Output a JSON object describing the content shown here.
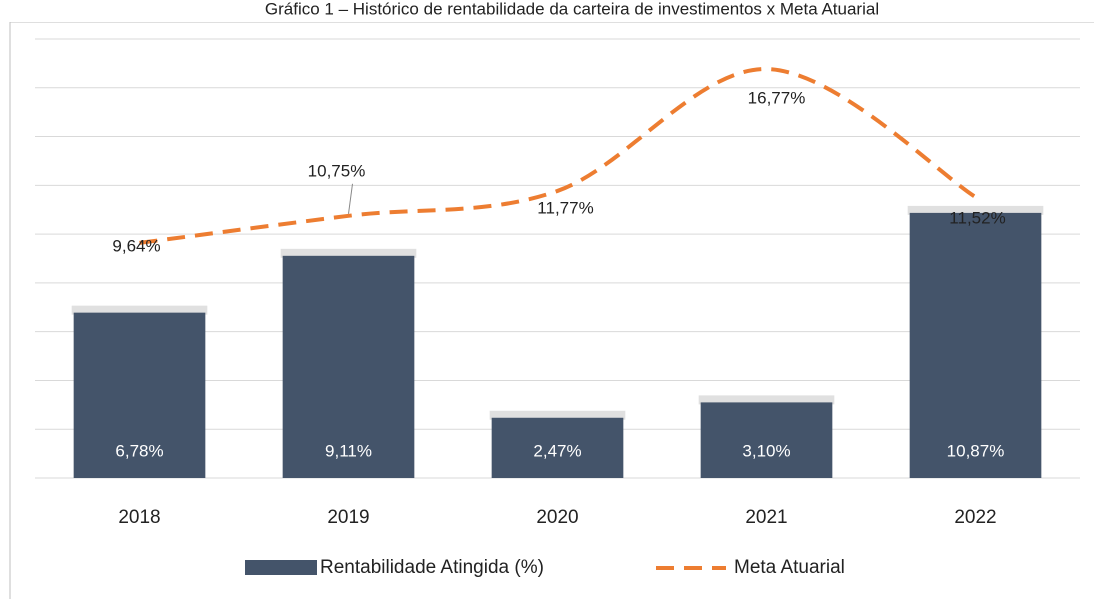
{
  "chart_data": {
    "type": "bar_line",
    "title": "Gráfico 1 – Histórico de rentabilidade da carteira de investimentos x Meta Atuarial",
    "categories": [
      "2018",
      "2019",
      "2020",
      "2021",
      "2022"
    ],
    "series": [
      {
        "name": "Rentabilidade Atingida (%)",
        "type": "bar",
        "color": "#44546a",
        "values": [
          6.78,
          9.11,
          2.47,
          3.1,
          10.87
        ],
        "value_labels": [
          "6,78%",
          "9,11%",
          "2,47%",
          "3,10%",
          "10,87%"
        ]
      },
      {
        "name": "Meta Atuarial",
        "type": "line",
        "color": "#ed7d31",
        "dashed": true,
        "smooth": true,
        "values": [
          9.64,
          10.75,
          11.77,
          16.77,
          11.52
        ],
        "value_labels": [
          "9,64%",
          "10,75%",
          "11,77%",
          "16,77%",
          "11,52%"
        ]
      }
    ],
    "ylim": [
      0,
      18
    ],
    "yticks": [
      0,
      2,
      4,
      6,
      8,
      10,
      12,
      14,
      16,
      18
    ],
    "grid": true,
    "legend": "bottom"
  }
}
